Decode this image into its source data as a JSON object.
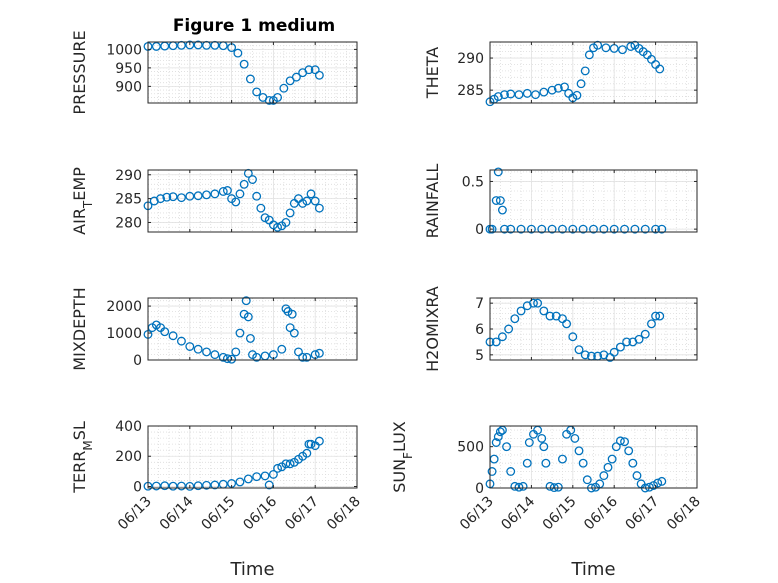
{
  "figure": {
    "title": "Figure 1 medium",
    "marker_color": "#0072BD",
    "marker": "open-circle"
  },
  "chart_data": [
    {
      "type": "scatter",
      "id": "pressure",
      "ylabel": "PRESSURE",
      "xlabel": "",
      "xlim": [
        0,
        5
      ],
      "ylim": [
        855,
        1020
      ],
      "yticks": [
        900,
        950,
        1000
      ],
      "ytick_labels": [
        "900",
        "950",
        "1000"
      ],
      "xticks": [
        0,
        1,
        2,
        3,
        4,
        5
      ],
      "xtick_labels": [],
      "grid": true,
      "x": [
        0.0,
        0.2,
        0.4,
        0.6,
        0.8,
        1.0,
        1.2,
        1.4,
        1.6,
        1.8,
        2.0,
        2.15,
        2.3,
        2.45,
        2.6,
        2.75,
        2.9,
        3.0,
        3.1,
        3.25,
        3.4,
        3.55,
        3.7,
        3.85,
        4.0,
        4.1
      ],
      "y": [
        1008,
        1008,
        1009,
        1010,
        1011,
        1012,
        1012,
        1011,
        1011,
        1010,
        1005,
        990,
        960,
        920,
        885,
        870,
        862,
        862,
        870,
        895,
        915,
        925,
        937,
        945,
        945,
        930
      ]
    },
    {
      "type": "scatter",
      "id": "theta",
      "ylabel": "THETA",
      "xlabel": "",
      "xlim": [
        0,
        5
      ],
      "ylim": [
        283,
        292.5
      ],
      "yticks": [
        285,
        290
      ],
      "ytick_labels": [
        "285",
        "290"
      ],
      "xticks": [
        0,
        1,
        2,
        3,
        4,
        5
      ],
      "xtick_labels": [],
      "grid": true,
      "x": [
        0.0,
        0.1,
        0.2,
        0.35,
        0.5,
        0.7,
        0.9,
        1.1,
        1.3,
        1.5,
        1.65,
        1.8,
        1.9,
        2.0,
        2.1,
        2.2,
        2.3,
        2.4,
        2.5,
        2.6,
        2.8,
        3.0,
        3.2,
        3.4,
        3.5,
        3.6,
        3.7,
        3.8,
        3.9,
        4.0,
        4.1
      ],
      "y": [
        283.2,
        283.6,
        284.0,
        284.3,
        284.4,
        284.3,
        284.5,
        284.3,
        284.7,
        285.0,
        285.3,
        285.5,
        284.5,
        283.8,
        284.2,
        286.0,
        288.0,
        290.5,
        291.6,
        292.0,
        291.6,
        291.5,
        291.3,
        291.8,
        292.0,
        291.5,
        291.0,
        290.5,
        289.8,
        289.0,
        288.3
      ]
    },
    {
      "type": "scatter",
      "id": "air_temp",
      "ylabel": "AIR_TEMP",
      "xlabel": "",
      "xlim": [
        0,
        5
      ],
      "ylim": [
        278,
        291
      ],
      "yticks": [
        280,
        285,
        290
      ],
      "ytick_labels": [
        "280",
        "285",
        "290"
      ],
      "xticks": [
        0,
        1,
        2,
        3,
        4,
        5
      ],
      "xtick_labels": [],
      "grid": true,
      "x": [
        0.0,
        0.15,
        0.3,
        0.45,
        0.6,
        0.8,
        1.0,
        1.2,
        1.4,
        1.6,
        1.8,
        1.9,
        2.0,
        2.1,
        2.2,
        2.3,
        2.4,
        2.5,
        2.6,
        2.7,
        2.8,
        2.9,
        3.0,
        3.1,
        3.2,
        3.3,
        3.4,
        3.5,
        3.6,
        3.7,
        3.8,
        3.9,
        4.0,
        4.1
      ],
      "y": [
        283.5,
        284.5,
        285.0,
        285.3,
        285.4,
        285.2,
        285.5,
        285.6,
        285.8,
        286.0,
        286.5,
        286.7,
        285.0,
        284.3,
        286.0,
        288.0,
        290.3,
        289.0,
        285.5,
        283.0,
        281.0,
        280.5,
        279.5,
        279.0,
        279.3,
        280.0,
        282.0,
        284.0,
        285.0,
        284.0,
        284.5,
        286.0,
        284.5,
        283.0
      ]
    },
    {
      "type": "scatter",
      "id": "rainfall",
      "ylabel": "RAINFALL",
      "xlabel": "",
      "xlim": [
        0,
        5
      ],
      "ylim": [
        -0.03,
        0.62
      ],
      "yticks": [
        0,
        0.5
      ],
      "ytick_labels": [
        "0",
        "0.5"
      ],
      "xticks": [
        0,
        1,
        2,
        3,
        4,
        5
      ],
      "xtick_labels": [],
      "grid": true,
      "x": [
        0.05,
        0.15,
        0.2,
        0.25,
        0.3,
        0.35,
        0.0,
        0.5,
        0.75,
        1.0,
        1.25,
        1.5,
        1.75,
        2.0,
        2.25,
        2.5,
        2.75,
        3.0,
        3.25,
        3.5,
        3.75,
        4.0,
        4.15
      ],
      "y": [
        0.0,
        0.3,
        0.6,
        0.3,
        0.2,
        0.0,
        0.0,
        0.0,
        0.0,
        0.0,
        0.0,
        0.0,
        0.0,
        0.0,
        0.0,
        0.0,
        0.0,
        0.0,
        0.0,
        0.0,
        0.0,
        0.0,
        0.0
      ]
    },
    {
      "type": "scatter",
      "id": "mixdepth",
      "ylabel": "MIXDEPTH",
      "xlabel": "",
      "xlim": [
        0,
        5
      ],
      "ylim": [
        0,
        2300
      ],
      "yticks": [
        0,
        1000,
        2000
      ],
      "ytick_labels": [
        "0",
        "1000",
        "2000"
      ],
      "xticks": [
        0,
        1,
        2,
        3,
        4,
        5
      ],
      "xtick_labels": [],
      "grid": true,
      "x": [
        0.0,
        0.1,
        0.2,
        0.3,
        0.4,
        0.6,
        0.8,
        1.0,
        1.2,
        1.4,
        1.6,
        1.8,
        1.9,
        2.0,
        2.1,
        2.2,
        2.3,
        2.35,
        2.4,
        2.45,
        2.5,
        2.6,
        2.8,
        3.0,
        3.2,
        3.3,
        3.35,
        3.4,
        3.45,
        3.5,
        3.6,
        3.7,
        3.8,
        4.0,
        4.1
      ],
      "y": [
        950,
        1200,
        1300,
        1200,
        1050,
        900,
        700,
        500,
        400,
        300,
        200,
        100,
        50,
        30,
        300,
        1000,
        1700,
        2200,
        1600,
        800,
        200,
        100,
        150,
        200,
        400,
        1900,
        1800,
        1200,
        1700,
        1000,
        300,
        100,
        100,
        200,
        250
      ]
    },
    {
      "type": "scatter",
      "id": "h2omixra",
      "ylabel": "H2OMIXRA",
      "xlabel": "",
      "xlim": [
        0,
        5
      ],
      "ylim": [
        4.8,
        7.2
      ],
      "yticks": [
        5,
        6,
        7
      ],
      "ytick_labels": [
        "5",
        "6",
        "7"
      ],
      "xticks": [
        0,
        1,
        2,
        3,
        4,
        5
      ],
      "xtick_labels": [],
      "grid": true,
      "x": [
        0.0,
        0.15,
        0.3,
        0.45,
        0.6,
        0.75,
        0.9,
        1.05,
        1.15,
        1.3,
        1.45,
        1.6,
        1.75,
        1.85,
        2.0,
        2.15,
        2.3,
        2.45,
        2.6,
        2.75,
        2.9,
        3.0,
        3.15,
        3.3,
        3.45,
        3.6,
        3.75,
        3.9,
        4.0,
        4.1
      ],
      "y": [
        5.5,
        5.5,
        5.7,
        6.0,
        6.4,
        6.7,
        6.9,
        7.0,
        7.0,
        6.7,
        6.5,
        6.5,
        6.4,
        6.2,
        5.7,
        5.2,
        5.0,
        4.95,
        4.95,
        5.0,
        4.9,
        5.1,
        5.3,
        5.5,
        5.5,
        5.6,
        5.8,
        6.2,
        6.5,
        6.5
      ]
    },
    {
      "type": "scatter",
      "id": "terr_msl",
      "ylabel": "TERR_MSL",
      "xlabel": "Time",
      "xlim": [
        0,
        5
      ],
      "ylim": [
        -10,
        400
      ],
      "yticks": [
        0,
        200,
        400
      ],
      "ytick_labels": [
        "0",
        "200",
        "400"
      ],
      "xticks": [
        0,
        1,
        2,
        3,
        4,
        5
      ],
      "xtick_labels": [
        "06/13",
        "06/14",
        "06/15",
        "06/16",
        "06/17",
        "06/18"
      ],
      "grid": true,
      "x": [
        0.0,
        0.2,
        0.4,
        0.6,
        0.8,
        1.0,
        1.2,
        1.4,
        1.6,
        1.8,
        2.0,
        2.2,
        2.4,
        2.6,
        2.8,
        2.9,
        3.0,
        3.1,
        3.2,
        3.3,
        3.4,
        3.5,
        3.6,
        3.7,
        3.8,
        3.85,
        3.9,
        4.0,
        4.1
      ],
      "y": [
        2,
        3,
        5,
        2,
        3,
        1,
        5,
        8,
        10,
        15,
        20,
        30,
        50,
        65,
        70,
        10,
        80,
        120,
        130,
        150,
        150,
        160,
        180,
        200,
        220,
        280,
        280,
        270,
        300
      ]
    },
    {
      "type": "scatter",
      "id": "sun_flux",
      "ylabel": "SUN_FLUX",
      "xlabel": "Time",
      "xlim": [
        0,
        5
      ],
      "ylim": [
        0,
        750
      ],
      "yticks": [
        0,
        500
      ],
      "ytick_labels": [
        "0",
        "500"
      ],
      "xticks": [
        0,
        1,
        2,
        3,
        4,
        5
      ],
      "xtick_labels": [
        "06/13",
        "06/14",
        "06/15",
        "06/16",
        "06/17",
        "06/18"
      ],
      "grid": true,
      "x": [
        0.0,
        0.05,
        0.1,
        0.15,
        0.2,
        0.25,
        0.3,
        0.4,
        0.5,
        0.6,
        0.7,
        0.8,
        0.9,
        0.95,
        1.05,
        1.15,
        1.25,
        1.3,
        1.35,
        1.45,
        1.55,
        1.65,
        1.75,
        1.85,
        1.95,
        2.05,
        2.15,
        2.25,
        2.35,
        2.45,
        2.55,
        2.65,
        2.75,
        2.85,
        2.95,
        3.05,
        3.15,
        3.25,
        3.35,
        3.45,
        3.55,
        3.65,
        3.75,
        3.85,
        3.95,
        4.05,
        4.15
      ],
      "y": [
        50,
        200,
        350,
        550,
        620,
        680,
        700,
        500,
        200,
        20,
        10,
        20,
        300,
        550,
        650,
        700,
        600,
        500,
        300,
        20,
        5,
        10,
        350,
        650,
        700,
        600,
        450,
        300,
        100,
        0,
        10,
        50,
        150,
        250,
        350,
        500,
        570,
        560,
        450,
        300,
        150,
        50,
        0,
        10,
        30,
        60,
        80
      ]
    }
  ]
}
